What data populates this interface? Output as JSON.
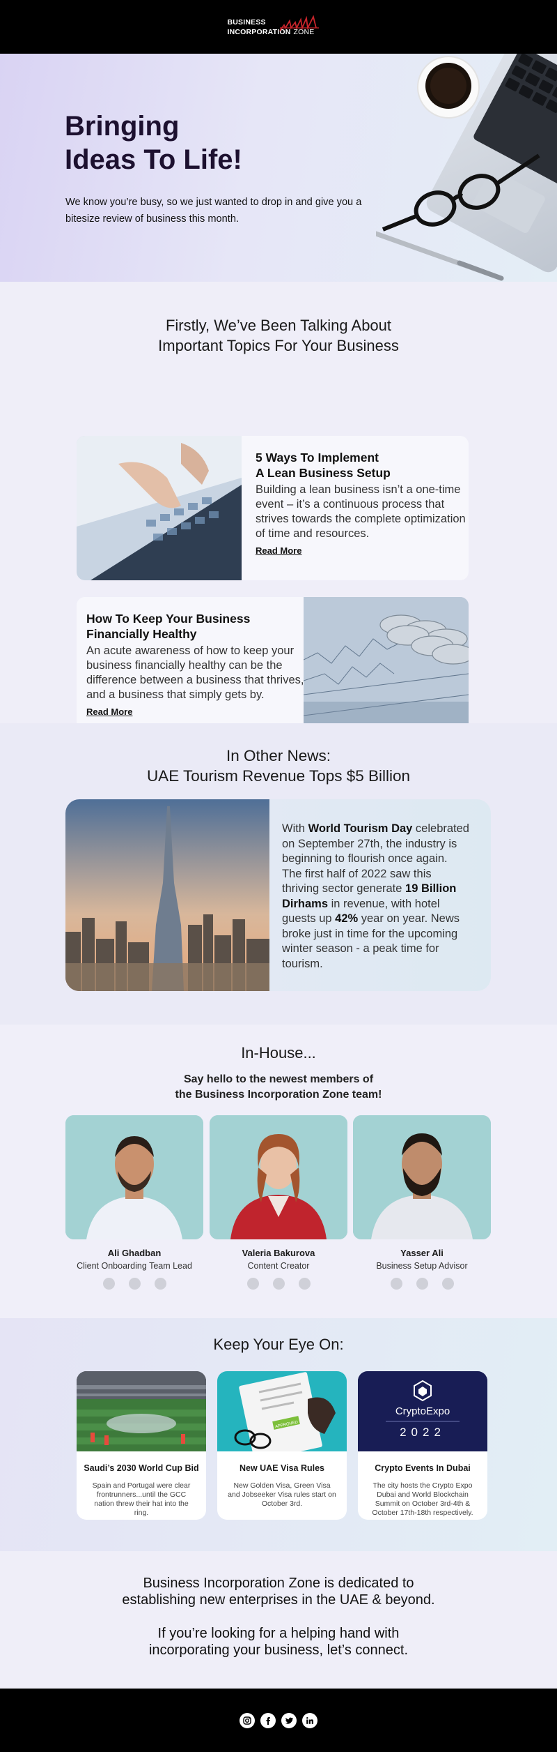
{
  "brand": {
    "line1": "BUSINESS",
    "line2": "INCORPORATION",
    "line2b": "ZONE"
  },
  "hero": {
    "title_line1": "Bringing",
    "title_line2": "Ideas To Life!",
    "text": "We know you’re busy, so we just wanted to drop in and give you a bitesize review of business this month."
  },
  "topics": {
    "title_line1": "Firstly, We’ve Been Talking About",
    "title_line2": "Important Topics For Your Business",
    "cards": [
      {
        "title_line1": "5 Ways To Implement",
        "title_line2": "A Lean Business Setup",
        "text": "Building a lean business isn’t a one-time event – it’s a continuous process that strives towards the complete optimization of time and resources.",
        "link": "Read More"
      },
      {
        "title_line1": "How To Keep Your Business",
        "title_line2": "Financially Healthy",
        "text": "An acute awareness of how to keep your business financially healthy can be the difference between a business that thrives, and a business that simply gets by.",
        "link": "Read More"
      }
    ]
  },
  "news": {
    "title_line1": "In Other News:",
    "title_line2": "UAE Tourism Revenue Tops $5 Billion",
    "t1": "With ",
    "b1": "World Tourism Day",
    "t2": " celebrated on September 27th, the industry is beginning to flourish once again. The first half of 2022 saw this thriving sector generate ",
    "b2": "19 Billion Dirhams",
    "t3": " in revenue, with hotel guests up ",
    "b3": "42%",
    "t4": " year on year. News broke just in time for the upcoming winter season - a peak time for tourism."
  },
  "inhouse": {
    "title": "In-House...",
    "sub_line1": "Say hello to the newest members of",
    "sub_line2": "the Business Incorporation Zone team!",
    "members": [
      {
        "name": "Ali Ghadban",
        "role": "Client Onboarding Team Lead"
      },
      {
        "name": "Valeria Bakurova",
        "role": "Content Creator"
      },
      {
        "name": "Yasser Ali",
        "role": "Business Setup Advisor"
      }
    ]
  },
  "eye": {
    "title": "Keep Your Eye On:",
    "cards": [
      {
        "title": "Saudi’s 2030 World Cup Bid",
        "text": "Spain and Portugal were clear frontrunners...until the GCC nation threw their hat into the ring."
      },
      {
        "title": "New UAE Visa Rules",
        "text": "New Golden Visa, Green Visa and Jobseeker Visa rules start on October 3rd.",
        "stamp": "APPROVED"
      },
      {
        "title": "Crypto Events In Dubai",
        "text": "The city hosts the Crypto Expo Dubai and World Blockchain Summit on October 3rd-4th & October 17th-18th respectively.",
        "logo_name": "CryptoExpo",
        "logo_year": "2022"
      }
    ]
  },
  "closing": {
    "p1_line1": "Business Incorporation Zone is dedicated to",
    "p1_line2": "establishing new enterprises in the UAE & beyond.",
    "p2_line1": "If you’re looking for a helping hand with",
    "p2_line2": "incorporating your business, let’s connect."
  },
  "footer": {
    "icons": [
      "instagram-icon",
      "facebook-icon",
      "twitter-icon",
      "linkedin-icon"
    ]
  }
}
